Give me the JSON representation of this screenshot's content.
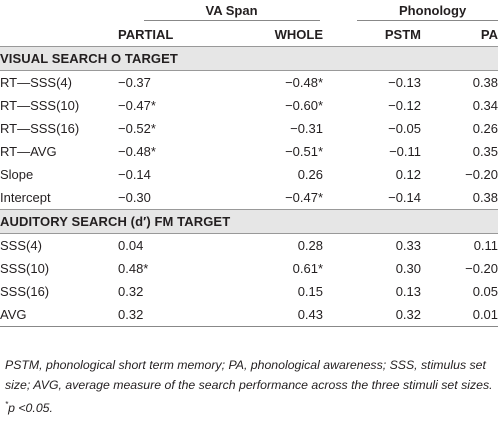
{
  "groups": {
    "va_span": "VA Span",
    "phonology": "Phonology"
  },
  "columns": {
    "partial": "PARTIAL",
    "whole": "WHOLE",
    "pstm": "PSTM",
    "pa": "PA"
  },
  "sections": [
    {
      "title": "VISUAL SEARCH O TARGET",
      "rows": [
        {
          "label": "RT—SSS(4)",
          "partial": "−0.37",
          "whole": "−0.48*",
          "pstm": "−0.13",
          "pa": "0.38"
        },
        {
          "label": "RT—SSS(10)",
          "partial": "−0.47*",
          "whole": "−0.60*",
          "pstm": "−0.12",
          "pa": "0.34"
        },
        {
          "label": "RT—SSS(16)",
          "partial": "−0.52*",
          "whole": "−0.31",
          "pstm": "−0.05",
          "pa": "0.26"
        },
        {
          "label": "RT—AVG",
          "partial": "−0.48*",
          "whole": "−0.51*",
          "pstm": "−0.11",
          "pa": "0.35"
        },
        {
          "label": "Slope",
          "partial": "−0.14",
          "whole": "0.26",
          "pstm": "0.12",
          "pa": "−0.20"
        },
        {
          "label": "Intercept",
          "partial": "−0.30",
          "whole": "−0.47*",
          "pstm": "−0.14",
          "pa": "0.38"
        }
      ]
    },
    {
      "title": "AUDITORY SEARCH (d′) FM TARGET",
      "rows": [
        {
          "label": "SSS(4)",
          "partial": "0.04",
          "whole": "0.28",
          "pstm": "0.33",
          "pa": "0.11"
        },
        {
          "label": "SSS(10)",
          "partial": "0.48*",
          "whole": "0.61*",
          "pstm": "0.30",
          "pa": "−0.20"
        },
        {
          "label": "SSS(16)",
          "partial": "0.32",
          "whole": "0.15",
          "pstm": "0.13",
          "pa": "0.05"
        },
        {
          "label": "AVG",
          "partial": "0.32",
          "whole": "0.43",
          "pstm": "0.32",
          "pa": "0.01"
        }
      ]
    }
  ],
  "footnote": {
    "text": "PSTM, phonological short term memory; PA, phonological awareness; SSS, stimulus set size; AVG, average measure of the search performance across the three stimuli set sizes.",
    "sig_marker": "*",
    "sig_text": "p <0.05."
  }
}
